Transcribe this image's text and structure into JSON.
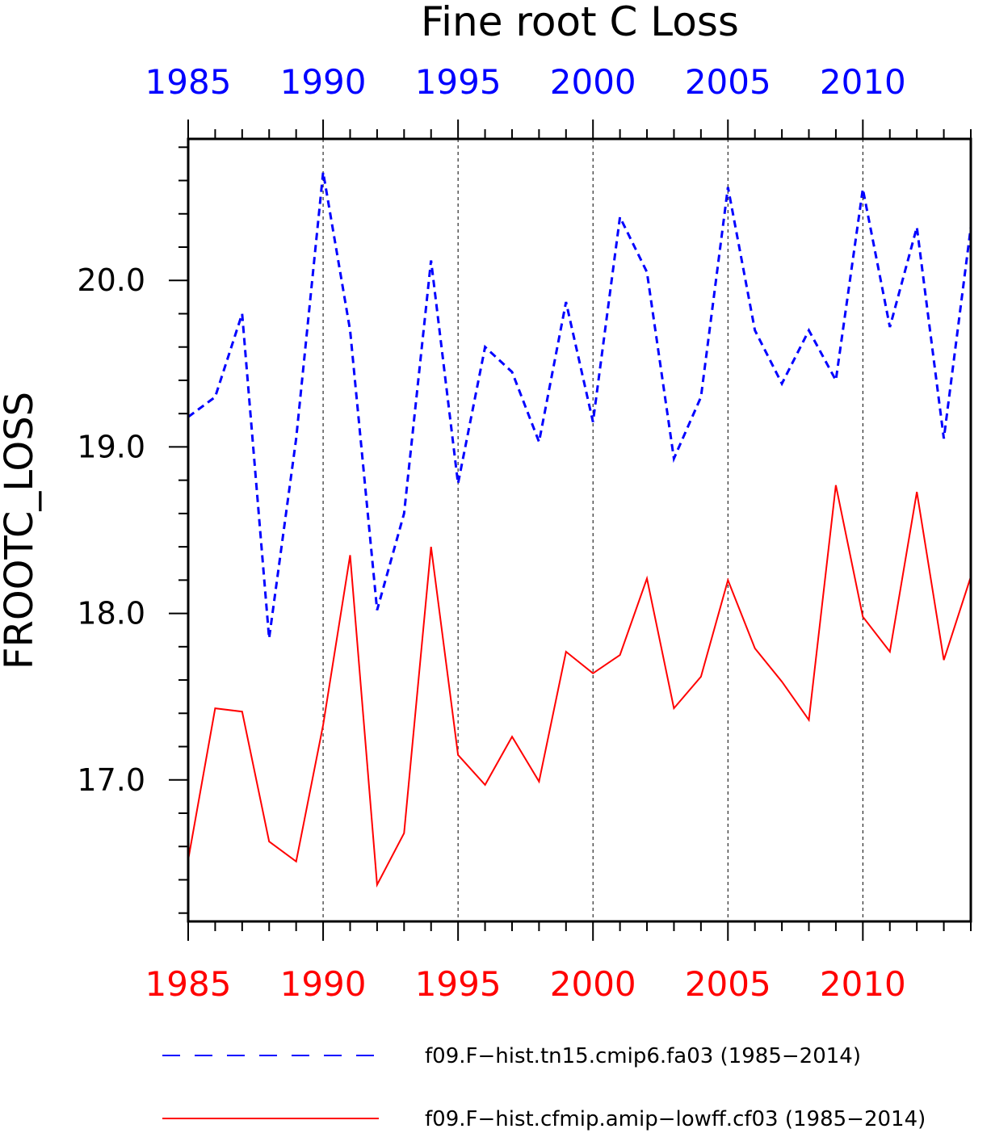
{
  "chart_data": {
    "type": "line",
    "title": "Fine root C Loss",
    "xlabel": "",
    "ylabel": "FROOTC_LOSS",
    "xlim": [
      1985,
      2014
    ],
    "ylim": [
      16.15,
      20.85
    ],
    "x_ticks": [
      "1985",
      "1990",
      "1995",
      "2000",
      "2005",
      "2010"
    ],
    "y_ticks": [
      "17.0",
      "18.0",
      "19.0",
      "20.0"
    ],
    "grid": "vertical dashed at labeled x ticks",
    "legend": "bottom",
    "x": [
      1985,
      1986,
      1987,
      1988,
      1989,
      1990,
      1991,
      1992,
      1993,
      1994,
      1995,
      1996,
      1997,
      1998,
      1999,
      2000,
      2001,
      2002,
      2003,
      2004,
      2005,
      2006,
      2007,
      2008,
      2009,
      2010,
      2011,
      2012,
      2013,
      2014
    ],
    "series": [
      {
        "name": "f09.F−hist.tn15.cmip6.fa03 (1985−2014)",
        "color": "#0000ff",
        "style": "dashed",
        "values": [
          19.18,
          19.3,
          19.8,
          17.85,
          19.05,
          20.65,
          19.7,
          18.02,
          18.6,
          20.12,
          18.78,
          19.6,
          19.45,
          19.03,
          19.87,
          19.15,
          20.38,
          20.05,
          18.93,
          19.3,
          20.56,
          19.7,
          19.38,
          19.7,
          19.4,
          20.55,
          19.72,
          20.32,
          19.05,
          20.32
        ]
      },
      {
        "name": "f09.F−hist.cfmip.amip−lowff.cf03 (1985−2014)",
        "color": "#ff0000",
        "style": "solid",
        "values": [
          16.52,
          17.43,
          17.41,
          16.63,
          16.51,
          17.33,
          18.35,
          16.37,
          16.68,
          18.4,
          17.15,
          16.97,
          17.26,
          16.99,
          17.77,
          17.64,
          17.75,
          18.21,
          17.43,
          17.62,
          18.2,
          17.79,
          17.59,
          17.36,
          18.77,
          17.98,
          17.77,
          18.73,
          17.72,
          18.22
        ]
      }
    ]
  }
}
